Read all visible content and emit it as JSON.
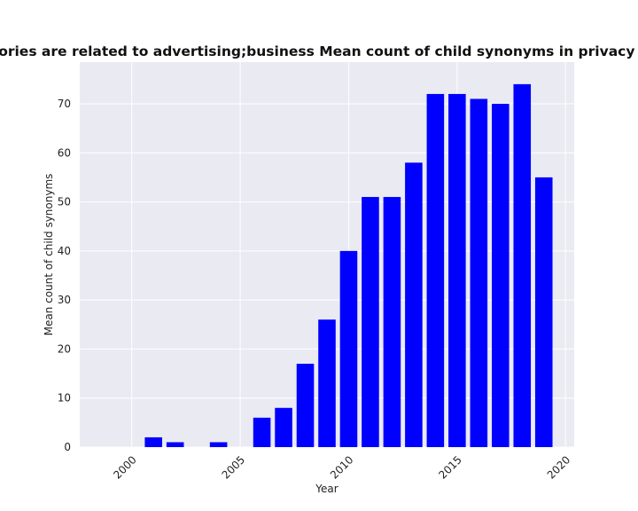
{
  "chart_data": {
    "type": "bar",
    "title": "categories are related to advertising;business Mean count of child synonyms in privacy policies",
    "xlabel": "Year",
    "ylabel": "Mean count of child synonyms",
    "x": [
      2001,
      2002,
      2004,
      2006,
      2007,
      2008,
      2009,
      2010,
      2011,
      2012,
      2013,
      2014,
      2015,
      2016,
      2017,
      2018,
      2019
    ],
    "values": [
      2,
      1,
      1,
      6,
      8,
      17,
      26,
      40,
      51,
      51,
      58,
      72,
      72,
      71,
      70,
      74,
      55
    ],
    "xlim": [
      1997.6,
      2020.4
    ],
    "ylim": [
      0,
      78.5
    ],
    "xticks": [
      2000,
      2005,
      2010,
      2015,
      2020
    ],
    "yticks": [
      0,
      10,
      20,
      30,
      40,
      50,
      60,
      70
    ],
    "grid": true,
    "bar_color": "#0000ff",
    "background_color": "#eaeaf2",
    "grid_color": "#ffffff"
  }
}
